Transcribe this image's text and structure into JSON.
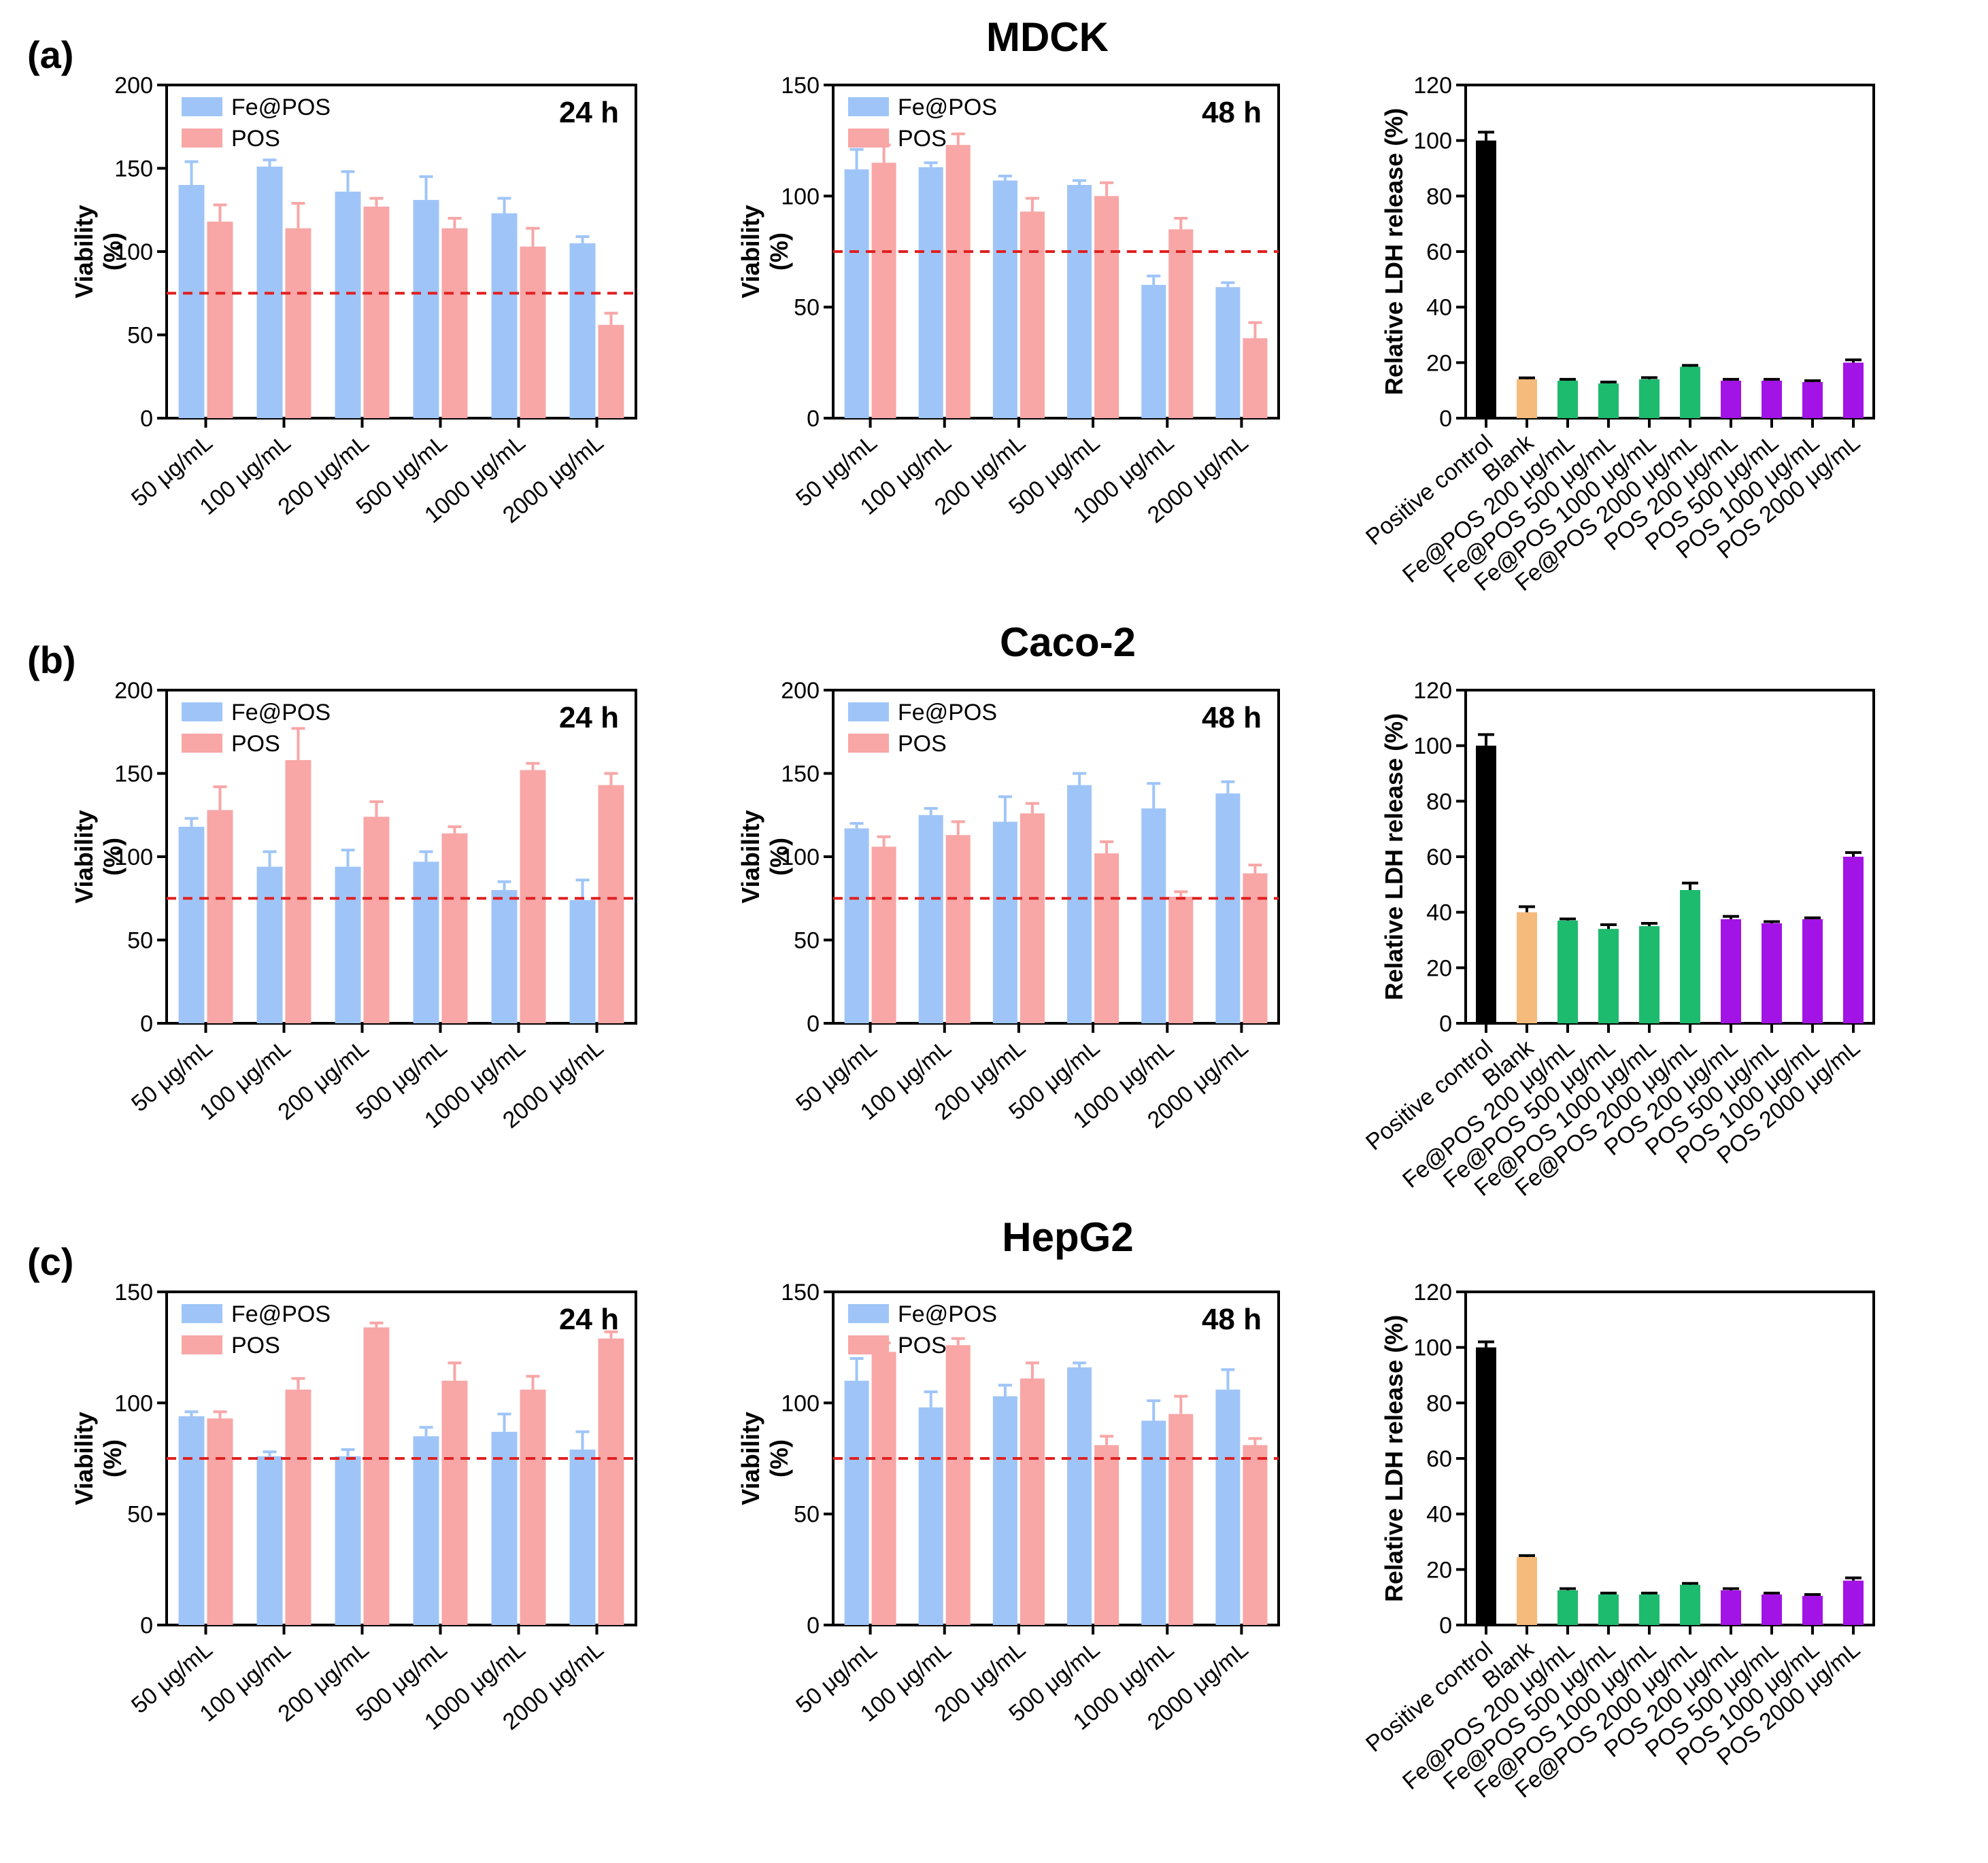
{
  "figure": {
    "rows": [
      {
        "letter": "(a)",
        "title": "MDCK"
      },
      {
        "letter": "(b)",
        "title": "Caco-2"
      },
      {
        "letter": "(c)",
        "title": "HepG2"
      }
    ]
  },
  "chart_data": [
    {
      "id": "a-24h",
      "type": "bar",
      "title": "24 h",
      "row": 0,
      "col": 0,
      "xlabel": "",
      "ylabel": "Viability\n(%)",
      "ylim": [
        0,
        200
      ],
      "yticks": [
        0,
        50,
        100,
        150,
        200
      ],
      "reference_line": 75,
      "categories": [
        "50 μg/mL",
        "100 μg/mL",
        "200 μg/mL",
        "500 μg/mL",
        "1000 μg/mL",
        "2000 μg/mL"
      ],
      "legend_position": "top-left",
      "series": [
        {
          "name": "Fe@POS",
          "color": "#9fc5f8",
          "values": [
            140,
            151,
            136,
            131,
            123,
            105
          ],
          "errors": [
            14,
            4,
            12,
            14,
            9,
            4
          ]
        },
        {
          "name": "POS",
          "color": "#f8a6a6",
          "values": [
            118,
            114,
            127,
            114,
            103,
            56
          ],
          "errors": [
            10,
            15,
            5,
            6,
            11,
            7
          ]
        }
      ]
    },
    {
      "id": "a-48h",
      "type": "bar",
      "title": "48 h",
      "row": 0,
      "col": 1,
      "xlabel": "",
      "ylabel": "Viability\n(%)",
      "ylim": [
        0,
        150
      ],
      "yticks": [
        0,
        50,
        100,
        150
      ],
      "reference_line": 75,
      "categories": [
        "50 μg/mL",
        "100 μg/mL",
        "200 μg/mL",
        "500 μg/mL",
        "1000 μg/mL",
        "2000 μg/mL"
      ],
      "legend_position": "top-left",
      "series": [
        {
          "name": "Fe@POS",
          "color": "#9fc5f8",
          "values": [
            112,
            113,
            107,
            105,
            60,
            59
          ],
          "errors": [
            9,
            2,
            2,
            2,
            4,
            2
          ]
        },
        {
          "name": "POS",
          "color": "#f8a6a6",
          "values": [
            115,
            123,
            93,
            100,
            85,
            36
          ],
          "errors": [
            8,
            5,
            6,
            6,
            5,
            7
          ]
        }
      ]
    },
    {
      "id": "a-ldh",
      "type": "bar",
      "title": "",
      "row": 0,
      "col": 2,
      "xlabel": "",
      "ylabel": "Relative LDH release (%)",
      "ylim": [
        0,
        120
      ],
      "yticks": [
        0,
        20,
        40,
        60,
        80,
        100,
        120
      ],
      "categories": [
        "Positive control",
        "Blank",
        "Fe@POS 200 μg/mL",
        "Fe@POS 500 μg/mL",
        "Fe@POS 1000 μg/mL",
        "Fe@POS 2000 μg/mL",
        "POS 200 μg/mL",
        "POS 500 μg/mL",
        "POS 1000 μg/mL",
        "POS 2000 μg/mL"
      ],
      "series": [
        {
          "name": "LDH",
          "colors": [
            "#000000",
            "#f4bb7c",
            "#1dbb6e",
            "#1dbb6e",
            "#1dbb6e",
            "#1dbb6e",
            "#a213e5",
            "#a213e5",
            "#a213e5",
            "#a213e5"
          ],
          "values": [
            100,
            14,
            13.5,
            12.5,
            14,
            18.5,
            13.5,
            13.5,
            13,
            20
          ],
          "errors": [
            3,
            0.5,
            0.5,
            0.5,
            0.6,
            0.5,
            0.5,
            0.5,
            0.5,
            1
          ]
        }
      ]
    },
    {
      "id": "b-24h",
      "type": "bar",
      "title": "24 h",
      "row": 1,
      "col": 0,
      "xlabel": "",
      "ylabel": "Viability\n(%)",
      "ylim": [
        0,
        200
      ],
      "yticks": [
        0,
        50,
        100,
        150,
        200
      ],
      "reference_line": 75,
      "categories": [
        "50 μg/mL",
        "100 μg/mL",
        "200 μg/mL",
        "500 μg/mL",
        "1000 μg/mL",
        "2000 μg/mL"
      ],
      "legend_position": "top-left",
      "series": [
        {
          "name": "Fe@POS",
          "color": "#9fc5f8",
          "values": [
            118,
            94,
            94,
            97,
            80,
            74
          ],
          "errors": [
            5,
            9,
            10,
            6,
            5,
            12
          ]
        },
        {
          "name": "POS",
          "color": "#f8a6a6",
          "values": [
            128,
            158,
            124,
            114,
            152,
            143
          ],
          "errors": [
            14,
            19,
            9,
            4,
            4,
            7
          ]
        }
      ]
    },
    {
      "id": "b-48h",
      "type": "bar",
      "title": "48 h",
      "row": 1,
      "col": 1,
      "xlabel": "",
      "ylabel": "Viability\n(%)",
      "ylim": [
        0,
        200
      ],
      "yticks": [
        0,
        50,
        100,
        150,
        200
      ],
      "reference_line": 75,
      "categories": [
        "50 μg/mL",
        "100 μg/mL",
        "200 μg/mL",
        "500 μg/mL",
        "1000 μg/mL",
        "2000 μg/mL"
      ],
      "legend_position": "top-left",
      "series": [
        {
          "name": "Fe@POS",
          "color": "#9fc5f8",
          "values": [
            117,
            125,
            121,
            143,
            129,
            138
          ],
          "errors": [
            3,
            4,
            15,
            7,
            15,
            7
          ]
        },
        {
          "name": "POS",
          "color": "#f8a6a6",
          "values": [
            106,
            113,
            126,
            102,
            76,
            90
          ],
          "errors": [
            6,
            8,
            6,
            7,
            3,
            5
          ]
        }
      ]
    },
    {
      "id": "b-ldh",
      "type": "bar",
      "title": "",
      "row": 1,
      "col": 2,
      "xlabel": "",
      "ylabel": "Relative LDH release (%)",
      "ylim": [
        0,
        120
      ],
      "yticks": [
        0,
        20,
        40,
        60,
        80,
        100,
        120
      ],
      "categories": [
        "Positive control",
        "Blank",
        "Fe@POS 200 μg/mL",
        "Fe@POS 500 μg/mL",
        "Fe@POS 1000 μg/mL",
        "Fe@POS 2000 μg/mL",
        "POS 200 μg/mL",
        "POS 500 μg/mL",
        "POS 1000 μg/mL",
        "POS 2000 μg/mL"
      ],
      "series": [
        {
          "name": "LDH",
          "colors": [
            "#000000",
            "#f4bb7c",
            "#1dbb6e",
            "#1dbb6e",
            "#1dbb6e",
            "#1dbb6e",
            "#a213e5",
            "#a213e5",
            "#a213e5",
            "#a213e5"
          ],
          "values": [
            100,
            40,
            37,
            34,
            35,
            48,
            37.5,
            36,
            37.5,
            60
          ],
          "errors": [
            4,
            2,
            0.6,
            1.5,
            1,
            2.5,
            1,
            0.6,
            0.5,
            1.5
          ]
        }
      ]
    },
    {
      "id": "c-24h",
      "type": "bar",
      "title": "24 h",
      "row": 2,
      "col": 0,
      "xlabel": "",
      "ylabel": "Viability\n(%)",
      "ylim": [
        0,
        150
      ],
      "yticks": [
        0,
        50,
        100,
        150
      ],
      "reference_line": 75,
      "categories": [
        "50 μg/mL",
        "100 μg/mL",
        "200 μg/mL",
        "500 μg/mL",
        "1000 μg/mL",
        "2000 μg/mL"
      ],
      "legend_position": "top-left",
      "series": [
        {
          "name": "Fe@POS",
          "color": "#9fc5f8",
          "values": [
            94,
            76,
            76,
            85,
            87,
            79
          ],
          "errors": [
            2,
            2,
            3,
            4,
            8,
            8
          ]
        },
        {
          "name": "POS",
          "color": "#f8a6a6",
          "values": [
            93,
            106,
            134,
            110,
            106,
            129
          ],
          "errors": [
            3,
            5,
            2,
            8,
            6,
            3
          ]
        }
      ]
    },
    {
      "id": "c-48h",
      "type": "bar",
      "title": "48 h",
      "row": 2,
      "col": 1,
      "xlabel": "",
      "ylabel": "Viability\n(%)",
      "ylim": [
        0,
        150
      ],
      "yticks": [
        0,
        50,
        100,
        150
      ],
      "reference_line": 75,
      "categories": [
        "50 μg/mL",
        "100 μg/mL",
        "200 μg/mL",
        "500 μg/mL",
        "1000 μg/mL",
        "2000 μg/mL"
      ],
      "legend_position": "top-left",
      "series": [
        {
          "name": "Fe@POS",
          "color": "#9fc5f8",
          "values": [
            110,
            98,
            103,
            116,
            92,
            106
          ],
          "errors": [
            10,
            7,
            5,
            2,
            9,
            9
          ]
        },
        {
          "name": "POS",
          "color": "#f8a6a6",
          "values": [
            123,
            126,
            111,
            81,
            95,
            81
          ],
          "errors": [
            4,
            3,
            7,
            4,
            8,
            3
          ]
        }
      ]
    },
    {
      "id": "c-ldh",
      "type": "bar",
      "title": "",
      "row": 2,
      "col": 2,
      "xlabel": "",
      "ylabel": "Relative LDH release (%)",
      "ylim": [
        0,
        120
      ],
      "yticks": [
        0,
        20,
        40,
        60,
        80,
        100,
        120
      ],
      "categories": [
        "Positive control",
        "Blank",
        "Fe@POS 200 μg/mL",
        "Fe@POS 500 μg/mL",
        "Fe@POS 1000 μg/mL",
        "Fe@POS 2000 μg/mL",
        "POS 200 μg/mL",
        "POS 500 μg/mL",
        "POS 1000 μg/mL",
        "POS 2000 μg/mL"
      ],
      "series": [
        {
          "name": "LDH",
          "colors": [
            "#000000",
            "#f4bb7c",
            "#1dbb6e",
            "#1dbb6e",
            "#1dbb6e",
            "#1dbb6e",
            "#a213e5",
            "#a213e5",
            "#a213e5",
            "#a213e5"
          ],
          "values": [
            100,
            24.5,
            12.5,
            11,
            11,
            14.5,
            12.5,
            11,
            10.5,
            16
          ],
          "errors": [
            2,
            0.5,
            0.6,
            0.5,
            0.5,
            0.5,
            0.6,
            0.5,
            0.5,
            1
          ]
        }
      ]
    }
  ]
}
